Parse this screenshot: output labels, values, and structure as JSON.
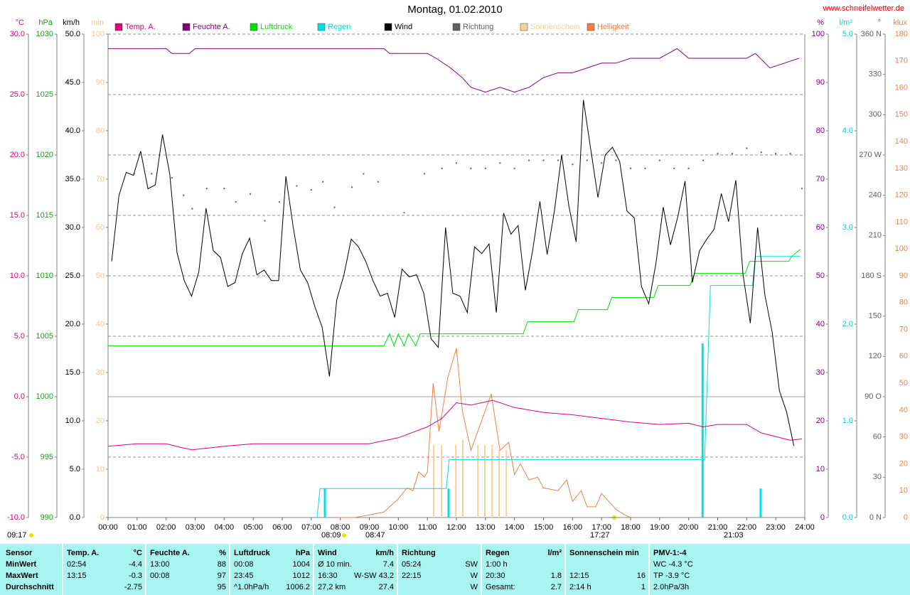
{
  "chart_data": {
    "type": "line",
    "title": "Montag, 01.02.2010",
    "source": "www.schneifelwetter.de",
    "xlim": [
      0,
      24
    ],
    "xticks": [
      {
        "value": 0,
        "label": "00:00"
      },
      {
        "value": 1,
        "label": "01:00"
      },
      {
        "value": 2,
        "label": "02:00"
      },
      {
        "value": 3,
        "label": "03:00"
      },
      {
        "value": 4,
        "label": "04:00"
      },
      {
        "value": 5,
        "label": "05:00"
      },
      {
        "value": 6,
        "label": "06:00"
      },
      {
        "value": 7,
        "label": "07:00"
      },
      {
        "value": 8,
        "label": "08:00"
      },
      {
        "value": 9,
        "label": "09:00"
      },
      {
        "value": 10,
        "label": "10:00"
      },
      {
        "value": 11,
        "label": "11:00"
      },
      {
        "value": 12,
        "label": "12:00"
      },
      {
        "value": 13,
        "label": "13:00"
      },
      {
        "value": 14,
        "label": "14:00"
      },
      {
        "value": 15,
        "label": "15:00"
      },
      {
        "value": 16,
        "label": "16:00"
      },
      {
        "value": 17,
        "label": "17:00"
      },
      {
        "value": 18,
        "label": "18:00"
      },
      {
        "value": 19,
        "label": "19:00"
      },
      {
        "value": 20,
        "label": "20:00"
      },
      {
        "value": 21,
        "label": "21:00"
      },
      {
        "value": 22,
        "label": "22:00"
      },
      {
        "value": 23,
        "label": "23:00"
      },
      {
        "value": 24,
        "label": "24:00"
      }
    ],
    "grid": true,
    "yaxes": [
      {
        "label": "°C",
        "color": "#e0007b",
        "lim": [
          -10,
          30
        ],
        "ticks": [
          {
            "value": -10,
            "label": "-10.0"
          },
          {
            "value": -5,
            "label": "-5.0"
          },
          {
            "value": 0,
            "label": "0.0"
          },
          {
            "value": 5,
            "label": "5.0"
          },
          {
            "value": 10,
            "label": "10.0"
          },
          {
            "value": 15,
            "label": "15.0"
          },
          {
            "value": 20,
            "label": "20.0"
          },
          {
            "value": 25,
            "label": "25.0"
          },
          {
            "value": 30,
            "label": "30.0"
          }
        ]
      },
      {
        "label": "hPa",
        "color": "#00b000",
        "lim": [
          990,
          1030
        ],
        "ticks": [
          990,
          995,
          1000,
          1005,
          1010,
          1015,
          1020,
          1025,
          1030
        ]
      },
      {
        "label": "km/h",
        "color": "#000000",
        "lim": [
          0,
          50
        ],
        "ticks": [
          {
            "value": 0,
            "label": "0.0"
          },
          {
            "value": 5,
            "label": "5.0"
          },
          {
            "value": 10,
            "label": "10.0"
          },
          {
            "value": 15,
            "label": "15.0"
          },
          {
            "value": 20,
            "label": "20.0"
          },
          {
            "value": 25,
            "label": "25.0"
          },
          {
            "value": 30,
            "label": "30.0"
          },
          {
            "value": 35,
            "label": "35.0"
          },
          {
            "value": 40,
            "label": "40.0"
          },
          {
            "value": 45,
            "label": "45.0"
          },
          {
            "value": 50,
            "label": "50.0"
          }
        ]
      },
      {
        "label": "min",
        "color": "#f0c890",
        "lim": [
          0,
          100
        ],
        "ticks": [
          0,
          10,
          20,
          30,
          40,
          50,
          60,
          70,
          80,
          90,
          100
        ]
      },
      {
        "label": "%",
        "color": "#800080",
        "lim": [
          0,
          100
        ],
        "ticks": [
          0,
          10,
          20,
          30,
          40,
          50,
          60,
          70,
          80,
          90,
          100
        ]
      },
      {
        "label": "l/m²",
        "color": "#00d0d0",
        "lim": [
          0,
          5
        ],
        "ticks": [
          {
            "value": 0,
            "label": "0.0"
          },
          {
            "value": 1,
            "label": "1.0"
          },
          {
            "value": 2,
            "label": "2.0"
          },
          {
            "value": 3,
            "label": "3.0"
          },
          {
            "value": 4,
            "label": "4.0"
          },
          {
            "value": 5,
            "label": "5.0"
          }
        ]
      },
      {
        "label": "°",
        "color": "#606060",
        "lim": [
          0,
          360
        ],
        "ticks": [
          {
            "value": 0,
            "label": "0 N"
          },
          30,
          60,
          {
            "value": 90,
            "label": "90 O"
          },
          120,
          150,
          {
            "value": 180,
            "label": "180 S"
          },
          210,
          240,
          {
            "value": 270,
            "label": "270 W"
          },
          300,
          330,
          {
            "value": 360,
            "label": "360 N"
          }
        ]
      },
      {
        "label": "klux",
        "color": "#f08040",
        "lim": [
          0,
          180
        ],
        "ticks": [
          0,
          10,
          20,
          30,
          40,
          50,
          60,
          70,
          80,
          90,
          100,
          110,
          120,
          130,
          140,
          150,
          160,
          170,
          180
        ]
      }
    ],
    "series": [
      {
        "name": "Temp. A.",
        "color": "#e0007b",
        "axis": 0,
        "style": "line",
        "x": [
          0,
          1,
          2,
          2.5,
          2.9,
          4,
          5,
          6,
          7,
          8,
          9,
          10,
          11,
          11.5,
          12,
          12.5,
          13.25,
          14,
          15,
          16,
          17,
          18,
          19,
          20,
          20.5,
          21,
          22,
          22.5,
          23,
          23.5,
          23.9
        ],
        "values": [
          -4.1,
          -3.9,
          -3.9,
          -4.2,
          -4.4,
          -4.1,
          -3.9,
          -3.9,
          -3.9,
          -3.9,
          -3.9,
          -3.4,
          -2.5,
          -1.8,
          -0.5,
          -0.7,
          -0.3,
          -0.9,
          -1.3,
          -1.5,
          -1.8,
          -2.1,
          -2.3,
          -2.2,
          -2.5,
          -2.3,
          -2.3,
          -3.0,
          -3.3,
          -3.6,
          -3.5
        ]
      },
      {
        "name": "Feuchte A.",
        "color": "#800080",
        "axis": 4,
        "style": "line",
        "x": [
          0,
          2,
          2.2,
          2.8,
          3,
          9.5,
          9.7,
          11,
          11.3,
          11.8,
          12.2,
          12.5,
          13,
          13.5,
          14,
          14.5,
          15,
          15.5,
          16,
          16.5,
          17,
          17.5,
          18,
          19,
          19.3,
          19.6,
          20,
          22,
          22.3,
          22.8,
          23.3,
          23.8
        ],
        "values": [
          97,
          97,
          96,
          96,
          97,
          97,
          96,
          96,
          95,
          93,
          91,
          89,
          88,
          89,
          88,
          89,
          91,
          92,
          92,
          93,
          94,
          94,
          95,
          95,
          96,
          97,
          95,
          95,
          96,
          93,
          94,
          95
        ]
      },
      {
        "name": "Luftdruck",
        "color": "#00e000",
        "axis": 1,
        "style": "line",
        "x": [
          0,
          9.5,
          9.7,
          9.85,
          10.0,
          10.2,
          10.35,
          10.6,
          10.75,
          14.3,
          14.45,
          16.05,
          16.2,
          17.2,
          17.35,
          18.8,
          18.95,
          20.05,
          20.2,
          21.95,
          22.1,
          23.45,
          23.55,
          23.85
        ],
        "values": [
          1004.2,
          1004.2,
          1005.2,
          1004.2,
          1005.2,
          1004.2,
          1005.2,
          1004.2,
          1005.2,
          1005.2,
          1006.2,
          1006.2,
          1007.2,
          1007.2,
          1008.2,
          1008.2,
          1009.2,
          1009.2,
          1010.2,
          1010.2,
          1011.2,
          1011.2,
          1011.6,
          1012.2
        ]
      },
      {
        "name": "Regen",
        "color": "#00e0e0",
        "axis": 5,
        "style": "line",
        "x": [
          7.2,
          7.3,
          11.65,
          11.75,
          20.55,
          20.75,
          22.2,
          22.3,
          23.85
        ],
        "values": [
          0,
          0.3,
          0.3,
          0.6,
          0.6,
          2.4,
          2.4,
          2.7,
          2.7
        ],
        "bar_x": [
          7.47,
          11.73,
          20.48,
          22.48
        ],
        "bar_values": [
          0.3,
          0.3,
          1.8,
          0.3
        ]
      },
      {
        "name": "Wind",
        "color": "#000000",
        "axis": 2,
        "style": "line",
        "x": [
          0.125,
          0.375,
          0.625,
          0.875,
          1.125,
          1.375,
          1.625,
          1.875,
          2.125,
          2.375,
          2.625,
          2.875,
          3.125,
          3.375,
          3.625,
          3.875,
          4.125,
          4.375,
          4.625,
          4.875,
          5.125,
          5.375,
          5.625,
          5.875,
          6.125,
          6.375,
          6.625,
          6.875,
          7.125,
          7.375,
          7.625,
          7.875,
          8.125,
          8.375,
          8.625,
          8.875,
          9.125,
          9.375,
          9.625,
          9.875,
          10.125,
          10.375,
          10.625,
          10.875,
          11.125,
          11.375,
          11.625,
          11.875,
          12.125,
          12.375,
          12.625,
          12.875,
          13.125,
          13.375,
          13.625,
          13.875,
          14.125,
          14.375,
          14.625,
          14.875,
          15.125,
          15.375,
          15.625,
          15.875,
          16.125,
          16.375,
          16.625,
          16.875,
          17.125,
          17.375,
          17.625,
          17.875,
          18.125,
          18.375,
          18.625,
          18.875,
          19.125,
          19.375,
          19.625,
          19.875,
          20.125,
          20.375,
          20.625,
          20.875,
          21.125,
          21.375,
          21.625,
          21.875,
          22.125,
          22.375,
          22.625,
          22.875,
          23.125,
          23.375,
          23.625
        ],
        "values": [
          26.5,
          33.3,
          35.7,
          35.4,
          37.9,
          34.0,
          34.4,
          39.6,
          35.5,
          27.4,
          24.5,
          22.9,
          25.4,
          32.0,
          27.6,
          26.9,
          23.9,
          24.3,
          27.3,
          28.9,
          25.1,
          25.6,
          24.5,
          24.5,
          35.3,
          30.1,
          25.6,
          24.3,
          21.8,
          19.7,
          14.6,
          22.5,
          25.1,
          28.8,
          28.0,
          26.5,
          24.5,
          22.9,
          23.2,
          20.7,
          25.7,
          24.9,
          25.1,
          23.2,
          18.5,
          17.6,
          30.0,
          23.2,
          22.9,
          21.2,
          28.0,
          27.3,
          28.3,
          21.2,
          31.5,
          29.3,
          30.2,
          23.5,
          27.6,
          32.7,
          27.2,
          31.7,
          37.5,
          32.2,
          28.5,
          43.2,
          38.1,
          33.1,
          37.5,
          38.3,
          36.8,
          31.7,
          31.0,
          23.9,
          22.1,
          26.3,
          32.1,
          28.2,
          31.1,
          34.8,
          24.3,
          27.6,
          28.8,
          29.8,
          33.5,
          30.6,
          34.9,
          25.1,
          20.1,
          30.0,
          23.0,
          19.2,
          13.1,
          10.9,
          7.4
        ]
      },
      {
        "name": "Richtung",
        "color": "#606060",
        "axis": 6,
        "style": "dots",
        "x": [
          0.9,
          1.5,
          2.2,
          2.6,
          2.9,
          3.4,
          4,
          4.4,
          4.9,
          5.4,
          5.9,
          6.5,
          7,
          7.4,
          7.8,
          8.4,
          8.8,
          9.3,
          10.2,
          10.9,
          11.5,
          12,
          12.5,
          13,
          13.5,
          14,
          14.5,
          15,
          15.5,
          16,
          16.5,
          17,
          17.5,
          18,
          18.5,
          19,
          19.5,
          20,
          20.5,
          21,
          21.5,
          22,
          22.5,
          23,
          23.5,
          23.9
        ],
        "values": [
          256,
          256,
          253,
          240,
          230,
          245,
          245,
          235,
          241,
          221,
          235,
          247,
          244,
          250,
          231,
          246,
          256,
          250,
          227,
          256,
          260,
          264,
          260,
          260,
          264,
          260,
          266,
          266,
          266,
          263,
          266,
          264,
          266,
          260,
          260,
          266,
          260,
          260,
          266,
          271,
          271,
          275,
          272,
          271,
          271,
          245
        ]
      },
      {
        "name": "Sonnenschein",
        "color": "#f8d098",
        "axis": 3,
        "style": "bars",
        "x": [
          11.22,
          11.49,
          11.98,
          12.22,
          12.74,
          12.98,
          13.23,
          13.47,
          13.72
        ],
        "values": [
          15,
          15,
          15,
          16,
          15,
          15,
          15,
          14,
          14
        ]
      },
      {
        "name": "Helligkeit",
        "color": "#f08040",
        "axis": 7,
        "style": "line",
        "x": [
          7.9,
          8.5,
          9.0,
          9.5,
          10.0,
          10.3,
          10.5,
          10.7,
          10.9,
          11.0,
          11.2,
          11.4,
          11.7,
          12.0,
          12.2,
          12.5,
          12.8,
          13.2,
          13.5,
          13.8,
          14.0,
          14.2,
          14.5,
          14.8,
          15.0,
          15.5,
          15.8,
          16.0,
          16.3,
          16.5,
          16.8,
          17.0,
          17.5,
          17.8,
          18.0
        ],
        "values": [
          0,
          0,
          1,
          2,
          7,
          11,
          10,
          17,
          15,
          17,
          50,
          32,
          52,
          63,
          40,
          25,
          34,
          46,
          25,
          28,
          16,
          20,
          14,
          15,
          11,
          10,
          14,
          6,
          10,
          4,
          4,
          9,
          3,
          1,
          0
        ]
      }
    ],
    "annotations": [
      "09:17",
      "08:09",
      "08:47",
      "17:27",
      "21:03"
    ]
  },
  "table": {
    "header": [
      {
        "left": "Sensor"
      },
      {
        "left": "Temp. A.",
        "right": "°C"
      },
      {
        "left": "Feuchte A.",
        "right": "%"
      },
      {
        "left": "Luftdruck",
        "right": "hPa"
      },
      {
        "left": "Wind",
        "right": "km/h"
      },
      {
        "left": "Richtung"
      },
      {
        "left": "Regen",
        "right": "l/m²"
      },
      {
        "left": "Sonnenschein min"
      },
      {
        "left": "PMV-1:-4"
      }
    ],
    "rows": [
      [
        {
          "left": "MinWert"
        },
        {
          "left": "02:54",
          "right": "-4.4"
        },
        {
          "left": "13:00",
          "right": "88"
        },
        {
          "left": "00:08",
          "right": "1004"
        },
        {
          "left": "Ø 10 min.",
          "right": "7.4"
        },
        {
          "left": "05:24",
          "right": "SW"
        },
        {
          "left": "1:00 h"
        },
        {},
        {
          "left": "WC -4.3 °C"
        }
      ],
      [
        {
          "left": "MaxWert"
        },
        {
          "left": "13:15",
          "right": "-0.3"
        },
        {
          "left": "00:08",
          "right": "97"
        },
        {
          "left": "23:45",
          "right": "1012"
        },
        {
          "left": "16:30",
          "right": "W-SW 43.2"
        },
        {
          "left": "22:15",
          "right": "W"
        },
        {
          "left": "20:30",
          "right": "1.8"
        },
        {
          "left": "12:15",
          "right": "16"
        },
        {
          "left": "TP -3.9 °C"
        }
      ],
      [
        {
          "left": "Durchschnitt"
        },
        {
          "right": "-2.75"
        },
        {
          "right": "95"
        },
        {
          "left": "^1.0hPa/h",
          "right": "1006.2"
        },
        {
          "left": "27,2 km",
          "right": "27.4"
        },
        {
          "right": "W"
        },
        {
          "left": "Gesamt:",
          "right": "2.7"
        },
        {
          "left": "2:14 h",
          "right": "1"
        },
        {
          "left": "2.0hPa/3h"
        }
      ]
    ]
  }
}
